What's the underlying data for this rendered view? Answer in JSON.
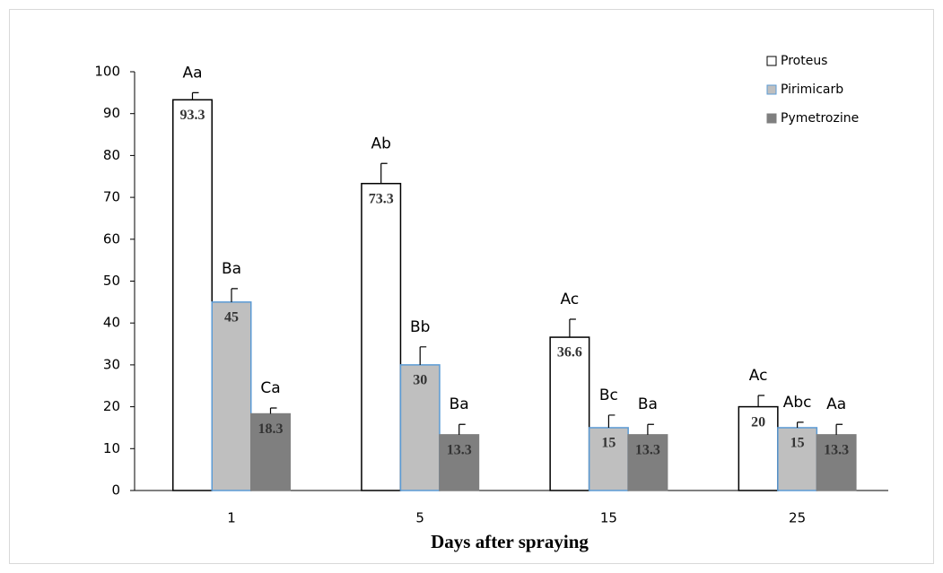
{
  "chart_data": {
    "type": "bar",
    "x_label": "Days after spraying",
    "categories": [
      "1",
      "5",
      "15",
      "25"
    ],
    "series": [
      {
        "name": "Proteus",
        "color": "#ffffff",
        "stroke": "#000000",
        "values": [
          93.3,
          73.3,
          36.6,
          20
        ],
        "errors": [
          1.7,
          4.8,
          4.3,
          2.7
        ],
        "letters": [
          "Aa",
          "Ab",
          "Ac",
          "Ac"
        ]
      },
      {
        "name": "Pirimicarb",
        "color": "#bfbfbf",
        "stroke": "#5b9bd5",
        "values": [
          45,
          30,
          15,
          15
        ],
        "errors": [
          3.2,
          4.3,
          3,
          1.3
        ],
        "letters": [
          "Ba",
          "Bb",
          "Bc",
          "Abc"
        ]
      },
      {
        "name": "Pymetrozine",
        "color": "#7f7f7f",
        "stroke": "#7f7f7f",
        "values": [
          18.3,
          13.3,
          13.3,
          13.3
        ],
        "errors": [
          1.4,
          2.5,
          2.5,
          2.5
        ],
        "letters": [
          "Ca",
          "Ba",
          "Ba",
          "Aa"
        ]
      }
    ],
    "ylim": [
      0,
      100
    ],
    "yticks": [
      0,
      10,
      20,
      30,
      40,
      50,
      60,
      70,
      80,
      90,
      100
    ],
    "legend": "top-right"
  }
}
